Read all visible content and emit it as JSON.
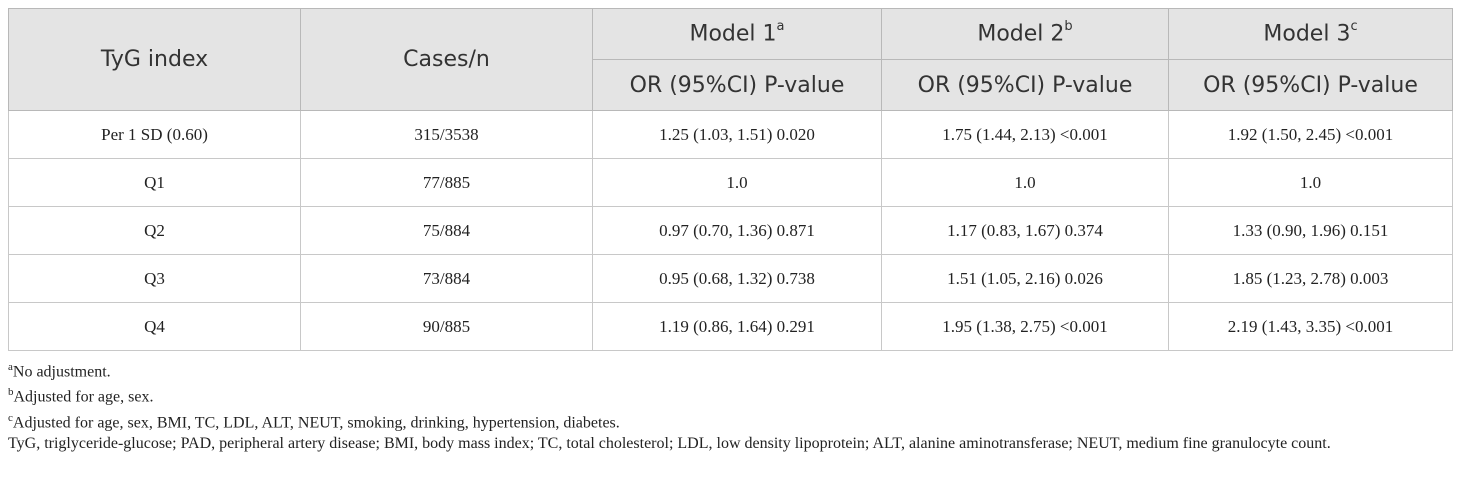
{
  "table": {
    "headers": {
      "col1": "TyG index",
      "col2": "Cases/n",
      "models": [
        {
          "label": "Model 1",
          "sup": "a"
        },
        {
          "label": "Model 2",
          "sup": "b"
        },
        {
          "label": "Model 3",
          "sup": "c"
        }
      ],
      "sub": "OR (95%CI) P-value"
    },
    "rows": [
      {
        "label": "Per 1 SD (0.60)",
        "cases": "315/3538",
        "m1": "1.25 (1.03, 1.51) 0.020",
        "m2": "1.75 (1.44, 2.13) <0.001",
        "m3": "1.92 (1.50, 2.45) <0.001"
      },
      {
        "label": "Q1",
        "cases": "77/885",
        "m1": "1.0",
        "m2": "1.0",
        "m3": "1.0"
      },
      {
        "label": "Q2",
        "cases": "75/884",
        "m1": "0.97 (0.70, 1.36) 0.871",
        "m2": "1.17 (0.83, 1.67) 0.374",
        "m3": "1.33 (0.90, 1.96) 0.151"
      },
      {
        "label": "Q3",
        "cases": "73/884",
        "m1": "0.95 (0.68, 1.32) 0.738",
        "m2": "1.51 (1.05, 2.16) 0.026",
        "m3": "1.85 (1.23, 2.78) 0.003"
      },
      {
        "label": "Q4",
        "cases": "90/885",
        "m1": "1.19 (0.86, 1.64) 0.291",
        "m2": "1.95 (1.38, 2.75) <0.001",
        "m3": "2.19 (1.43, 3.35) <0.001"
      }
    ]
  },
  "footnotes": [
    {
      "sup": "a",
      "text": "No adjustment."
    },
    {
      "sup": "b",
      "text": "Adjusted for age, sex."
    },
    {
      "sup": "c",
      "text": "Adjusted for age, sex, BMI, TC, LDL, ALT, NEUT, smoking, drinking, hypertension, diabetes."
    }
  ],
  "abbreviations": "TyG, triglyceride-glucose; PAD, peripheral artery disease; BMI, body mass index; TC, total cholesterol; LDL, low density lipoprotein; ALT, alanine aminotransferase; NEUT, medium fine granulocyte count."
}
